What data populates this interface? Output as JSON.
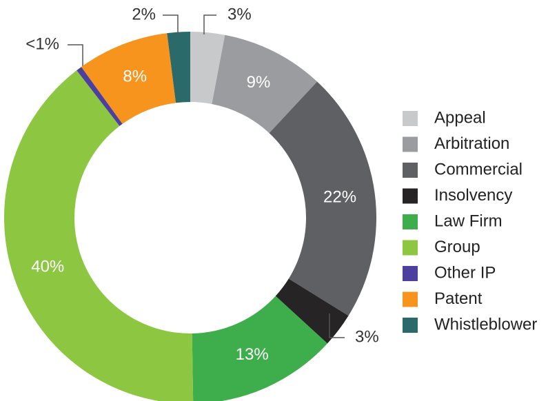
{
  "chart_data": {
    "type": "donut",
    "categories": [
      "Appeal",
      "Arbitration",
      "Commercial",
      "Insolvency",
      "Law Firm",
      "Group",
      "Other IP",
      "Patent",
      "Whistleblower"
    ],
    "values": [
      3,
      9,
      22,
      3,
      13,
      40,
      0.5,
      8,
      2
    ],
    "value_labels": [
      "3%",
      "9%",
      "22%",
      "3%",
      "13%",
      "40%",
      "<1%",
      "8%",
      "2%"
    ],
    "colors": [
      "#c8c9cb",
      "#9b9c9f",
      "#5f6063",
      "#272426",
      "#3dae4b",
      "#8dc641",
      "#4c3f9e",
      "#f7941d",
      "#2a6a6b"
    ],
    "legend": "right"
  }
}
